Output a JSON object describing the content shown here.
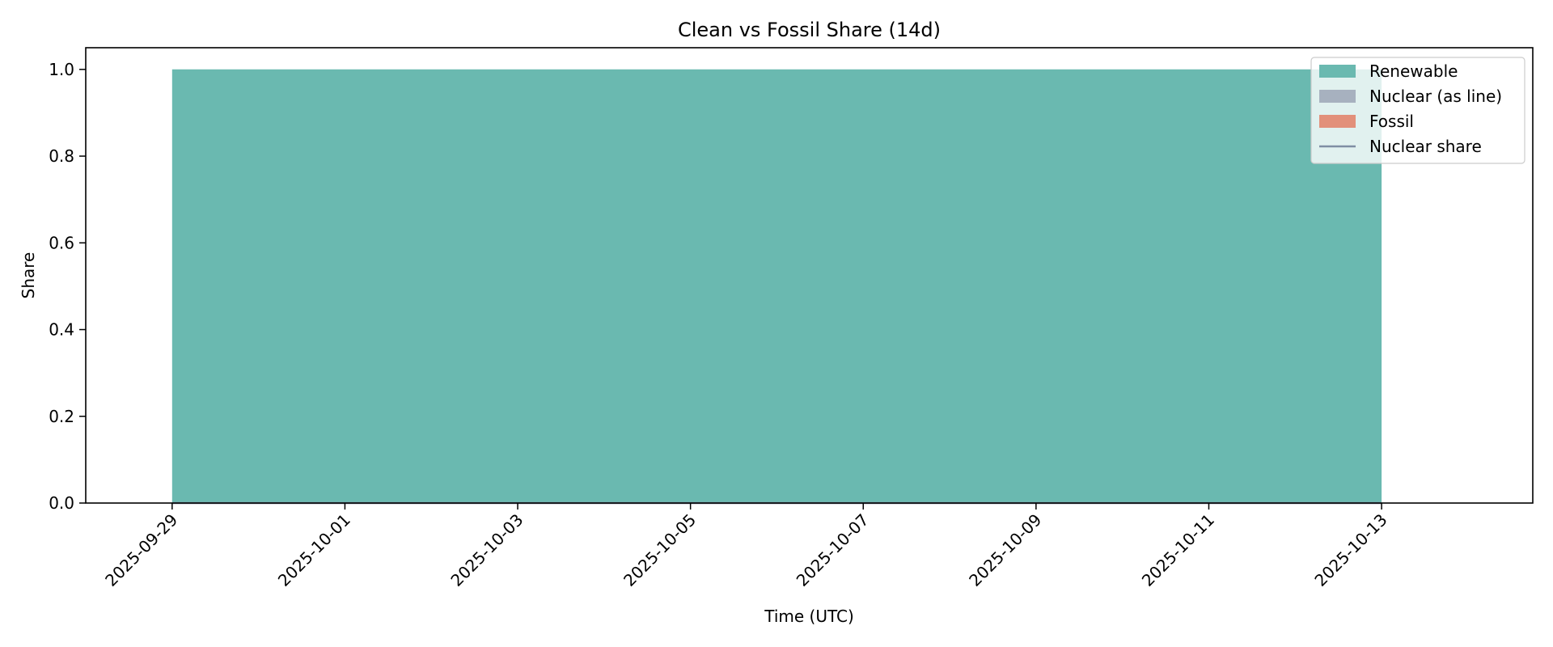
{
  "chart_data": {
    "type": "area",
    "title": "Clean vs Fossil Share (14d)",
    "xlabel": "Time (UTC)",
    "ylabel": "Share",
    "x_range": [
      "2025-09-29",
      "2025-10-13"
    ],
    "xlim": [
      "2025-09-28T00:00",
      "2025-10-14T18:00"
    ],
    "ylim": [
      0,
      1.05
    ],
    "x_ticks": [
      "2025-09-29",
      "2025-10-01",
      "2025-10-03",
      "2025-10-05",
      "2025-10-07",
      "2025-10-09",
      "2025-10-11",
      "2025-10-13"
    ],
    "y_ticks": [
      "0.0",
      "0.2",
      "0.4",
      "0.6",
      "0.8",
      "1.0"
    ],
    "stacked": true,
    "grid": false,
    "legend_position": "top-right",
    "series": [
      {
        "name": "Renewable",
        "kind": "area",
        "color": "#6ab9b0",
        "values": [
          [
            "2025-09-29",
            1.0
          ],
          [
            "2025-10-13",
            1.0
          ]
        ]
      },
      {
        "name": "Nuclear (as line)",
        "kind": "area",
        "color": "#a7b1bf",
        "values": [
          [
            "2025-09-29",
            0.0
          ],
          [
            "2025-10-13",
            0.0
          ]
        ]
      },
      {
        "name": "Fossil",
        "kind": "area",
        "color": "#e2907a",
        "values": [
          [
            "2025-09-29",
            0.0
          ],
          [
            "2025-10-13",
            0.0
          ]
        ]
      },
      {
        "name": "Nuclear share",
        "kind": "line",
        "color": "#7f8ea3",
        "values": [
          [
            "2025-09-29",
            0.0
          ],
          [
            "2025-10-13",
            0.0
          ]
        ]
      }
    ]
  }
}
